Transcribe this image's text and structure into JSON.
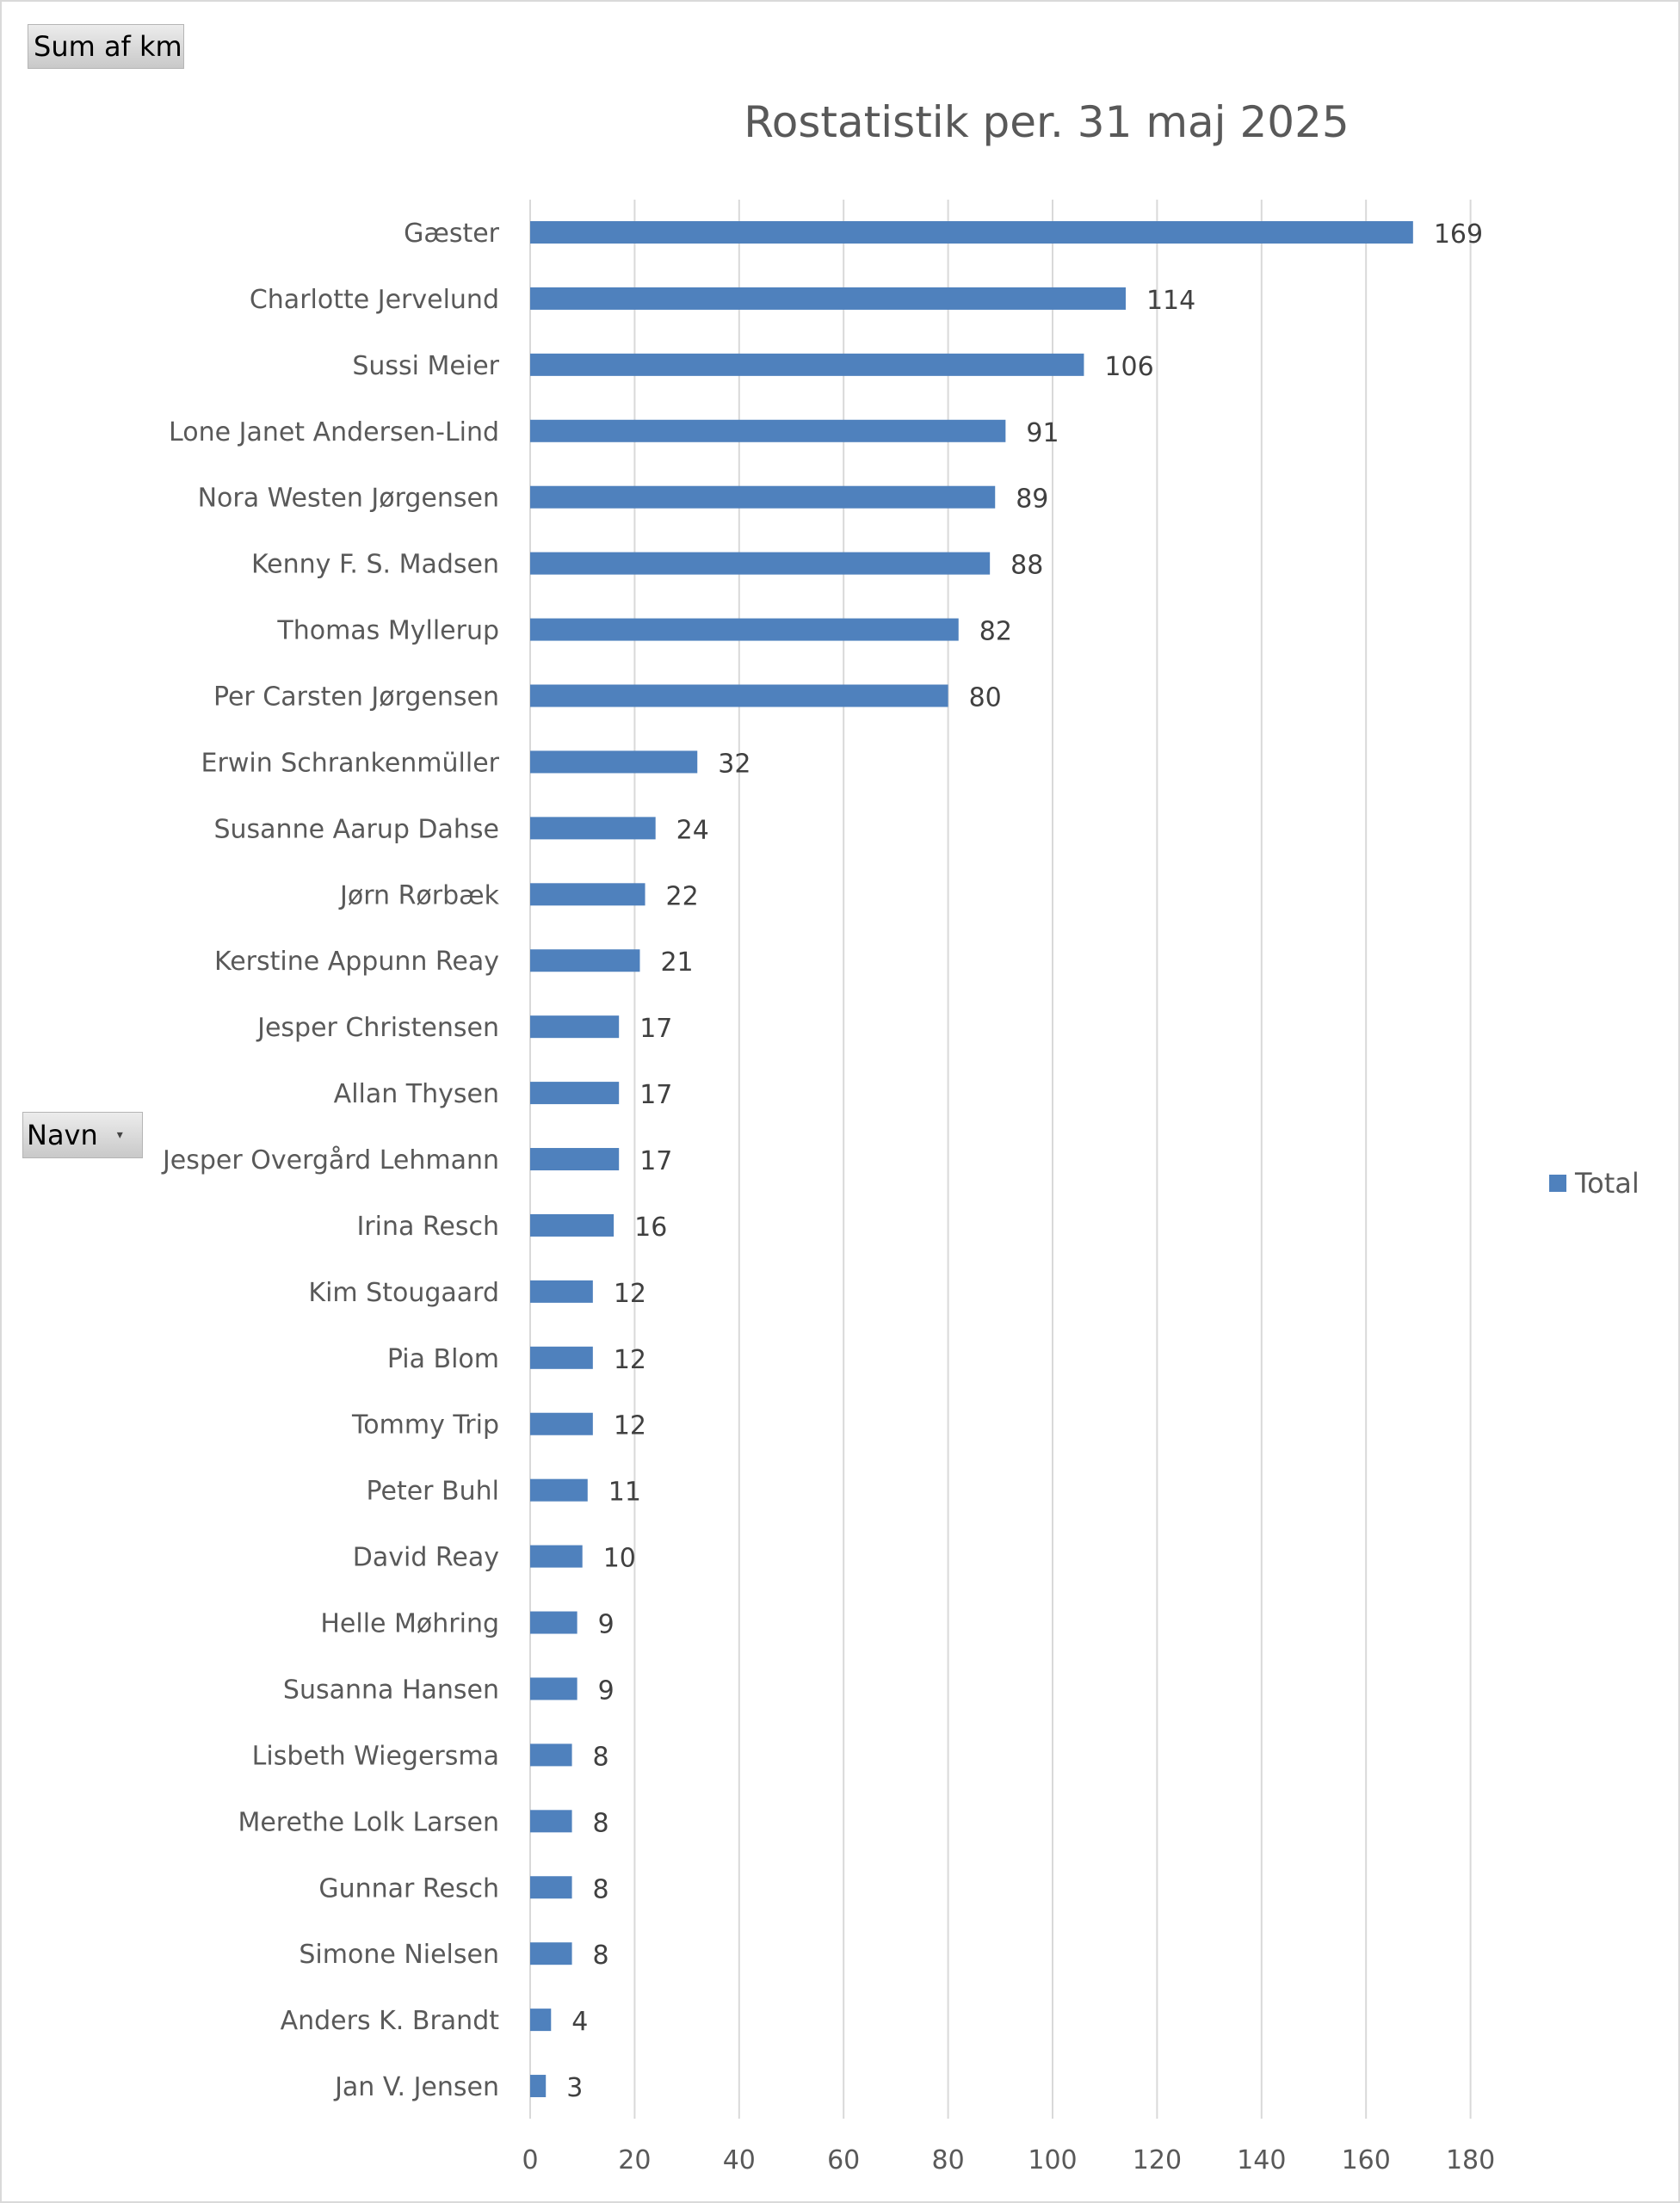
{
  "field_buttons": {
    "values_field": "Sum af km",
    "row_field": "Navn"
  },
  "colors": {
    "bar": "#4f81bd",
    "grid": "#d9d9d9",
    "text": "#595959"
  },
  "chart_data": {
    "type": "bar",
    "orientation": "horizontal",
    "title": "Rostatistik per. 31 maj 2025",
    "xlabel": "",
    "ylabel": "",
    "xlim": [
      0,
      180
    ],
    "x_ticks": [
      0,
      20,
      40,
      60,
      80,
      100,
      120,
      140,
      160,
      180
    ],
    "grid": "vertical",
    "legend_position": "right",
    "categories": [
      "Gæster",
      "Charlotte Jervelund",
      "Sussi Meier",
      "Lone Janet Andersen-Lind",
      "Nora Westen Jørgensen",
      "Kenny F. S. Madsen",
      "Thomas Myllerup",
      "Per Carsten Jørgensen",
      "Erwin Schrankenmüller",
      "Susanne Aarup Dahse",
      "Jørn Rørbæk",
      "Kerstine Appunn Reay",
      "Jesper Christensen",
      "Allan Thysen",
      "Jesper Overgård Lehmann",
      "Irina Resch",
      "Kim Stougaard",
      "Pia Blom",
      "Tommy Trip",
      "Peter Buhl",
      "David Reay",
      "Helle Møhring",
      "Susanna Hansen",
      "Lisbeth Wiegersma",
      "Merethe Lolk Larsen",
      "Gunnar Resch",
      "Simone Nielsen",
      "Anders K. Brandt",
      "Jan V. Jensen"
    ],
    "series": [
      {
        "name": "Total",
        "values": [
          169,
          114,
          106,
          91,
          89,
          88,
          82,
          80,
          32,
          24,
          22,
          21,
          17,
          17,
          17,
          16,
          12,
          12,
          12,
          11,
          10,
          9,
          9,
          8,
          8,
          8,
          8,
          4,
          3
        ]
      }
    ]
  }
}
